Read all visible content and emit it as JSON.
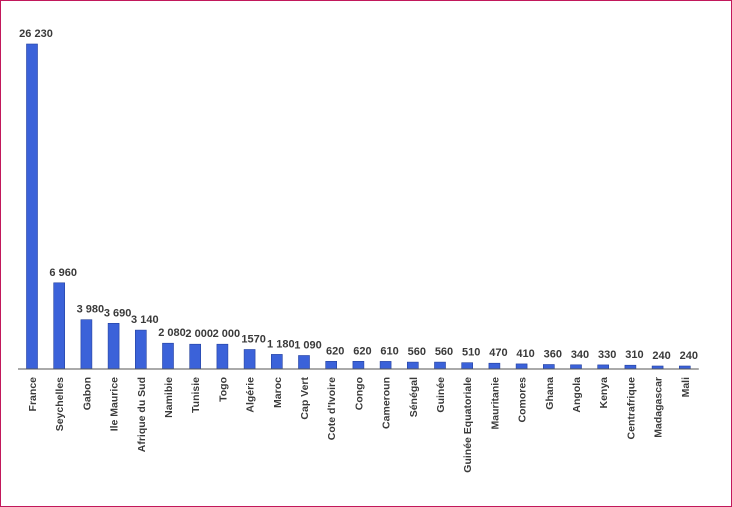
{
  "chart_data": {
    "type": "bar",
    "title": "",
    "xlabel": "",
    "ylabel": "",
    "categories": [
      "France",
      "Seychelles",
      "Gabon",
      "Ile Maurice",
      "Afrique du Sud",
      "Namibie",
      "Tunisie",
      "Togo",
      "Algérie",
      "Maroc",
      "Cap Vert",
      "Cote d'Ivoire",
      "Congo",
      "Cameroun",
      "Sénégal",
      "Guinée",
      "Guinée Equatoriale",
      "Mauritanie",
      "Comores",
      "Ghana",
      "Angola",
      "Kenya",
      "Centrafrique",
      "Madagascar",
      "Mali"
    ],
    "values": [
      26230,
      6960,
      3980,
      3690,
      3140,
      2080,
      2000,
      2000,
      1570,
      1180,
      1090,
      620,
      620,
      610,
      560,
      560,
      510,
      470,
      410,
      360,
      340,
      330,
      310,
      240,
      240
    ],
    "value_labels": [
      "26 230",
      "6 960",
      "3 980",
      "3 690",
      "3 140",
      "2 080",
      "2 000",
      "2 000",
      "1570",
      "1 180",
      "1 090",
      "620",
      "620",
      "610",
      "560",
      "560",
      "510",
      "470",
      "410",
      "360",
      "340",
      "330",
      "310",
      "240",
      "240"
    ],
    "ylim": [
      0,
      27000
    ],
    "grid": false,
    "legend": "none",
    "colors": {
      "bar": "#3b62d9",
      "bar_edge": "#23409e",
      "axis": "#555555",
      "border": "#c2185b"
    }
  }
}
